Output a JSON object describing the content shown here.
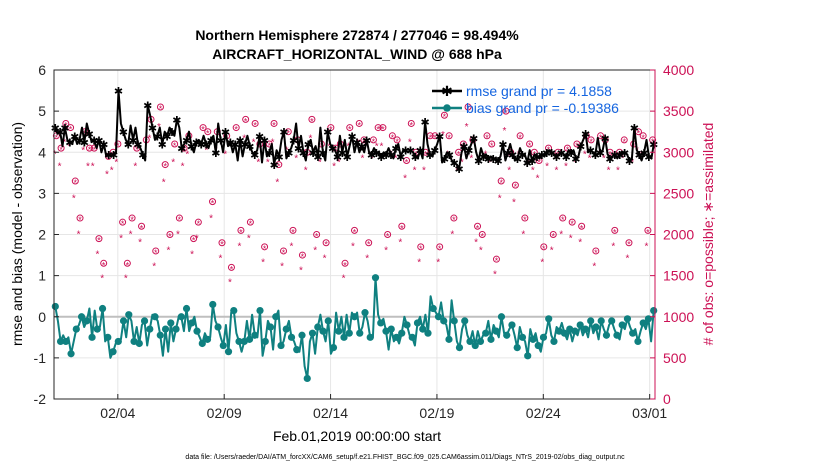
{
  "chart_data": {
    "type": "line",
    "title_line1": "Northern Hemisphere 272874 / 277046 = 98.494%",
    "title_line2": "AIRCRAFT_HORIZONTAL_WIND @ 688 hPa",
    "xlabel": "Feb.01,2019 00:00:00 start",
    "ylabel_left": "rmse and bias (model - observation)",
    "ylabel_right": "# of obs: o=possible; ∗=assimilated",
    "footnote": "data file: /Users/raeder/DAI/ATM_forcXX/CAM6_setup/f.e21.FHIST_BGC.f09_025.CAM6assim.011/Diags_NTrS_2019-02/obs_diag_output.nc",
    "x_range_days": [
      0,
      28.25
    ],
    "ylim_left": [
      -2,
      6
    ],
    "ylim_right": [
      0,
      4000
    ],
    "x_ticks": [
      {
        "day": 3,
        "label": "02/04"
      },
      {
        "day": 8,
        "label": "02/09"
      },
      {
        "day": 13,
        "label": "02/14"
      },
      {
        "day": 18,
        "label": "02/19"
      },
      {
        "day": 23,
        "label": "02/24"
      },
      {
        "day": 28,
        "label": "03/01"
      }
    ],
    "y_ticks_left": [
      "-2",
      "-1",
      "0",
      "1",
      "2",
      "3",
      "4",
      "5",
      "6"
    ],
    "y_ticks_right": [
      "0",
      "500",
      "1000",
      "1500",
      "2000",
      "2500",
      "3000",
      "3500",
      "4000"
    ],
    "legend": [
      {
        "label": "rmse grand pr = 4.1858",
        "color": "#000000"
      },
      {
        "label": "bias grand pr = -0.19386",
        "color": "#0f8080"
      }
    ],
    "series": [
      {
        "name": "rmse",
        "color": "#000000",
        "values": [
          4.6,
          4.45,
          4.5,
          4.15,
          4.6,
          4.3,
          4.25,
          4.2,
          4.4,
          4.2,
          4.3,
          4.6,
          4.25,
          4.7,
          4.45,
          4.25,
          4.3,
          4.1,
          4.3,
          4.0,
          4.2,
          3.9,
          3.95,
          3.9,
          3.95,
          4.0,
          5.5,
          4.7,
          4.5,
          4.3,
          4.2,
          4.65,
          4.3,
          4.6,
          4.2,
          4.1,
          3.95,
          3.8,
          5.15,
          4.9,
          4.6,
          4.3,
          4.4,
          4.6,
          4.2,
          4.5,
          4.4,
          4.6,
          4.5,
          4.4,
          4.8,
          4.6,
          4.1,
          4.2,
          4.3,
          4.5,
          4.15,
          4.0,
          4.25,
          4.3,
          4.2,
          4.4,
          4.2,
          4.1,
          4.3,
          4.4,
          4.0,
          4.7,
          4.3,
          4.0,
          4.5,
          4.15,
          4.25,
          4.0,
          4.2,
          3.8,
          4.3,
          3.9,
          4.2,
          4.4,
          4.15,
          4.0,
          3.95,
          4.05,
          4.4,
          3.75,
          4.3,
          3.9,
          4.0,
          4.2,
          3.7,
          4.05,
          3.9,
          4.3,
          4.5,
          3.85,
          4.0,
          4.1,
          4.3,
          4.7,
          4.1,
          4.4,
          4.0,
          3.8,
          4.2,
          4.3,
          4.0,
          4.15,
          3.9,
          4.6,
          4.0,
          3.8,
          4.5,
          4.2,
          4.1,
          4.05,
          3.9,
          4.4,
          4.0,
          4.3,
          3.9,
          4.15,
          4.4,
          4.0,
          4.25,
          4.0,
          4.15,
          4.0,
          4.3,
          4.0,
          3.95,
          4.1,
          4.0,
          4.0,
          3.9,
          4.0,
          3.95,
          4.1,
          3.95,
          3.85,
          4.1,
          4.2,
          3.9,
          4.05,
          4.05,
          4.0,
          4.05,
          4.0,
          3.9,
          3.85,
          4.05,
          3.85,
          4.75,
          4.2,
          3.95,
          3.9,
          4.05,
          4.2,
          4.4,
          3.75,
          3.85,
          4.0,
          3.95,
          3.8,
          3.75,
          3.7,
          3.6,
          4.0,
          4.15,
          3.85,
          4.05,
          4.2,
          4.35,
          4.0,
          3.8,
          4.1,
          3.9,
          3.95,
          3.85,
          3.9,
          3.85,
          3.85,
          3.8,
          3.9,
          4.2,
          3.8,
          4.0,
          4.2,
          3.95,
          3.8,
          3.85,
          4.1,
          3.95,
          3.95,
          3.75,
          4.05,
          3.8,
          3.95,
          3.9,
          3.85,
          3.95,
          3.9,
          4.0,
          4.05,
          4.0,
          3.95,
          3.9,
          3.95,
          4.0,
          3.95,
          3.9,
          4.05,
          4.0,
          4.05,
          3.85,
          3.9,
          4.15,
          4.3,
          4.45,
          4.0,
          4.05,
          4.0,
          3.95,
          4.35,
          4.0,
          4.05,
          4.35,
          3.95,
          3.85,
          3.9,
          3.95,
          3.85,
          3.95,
          4.0,
          4.0,
          3.95,
          3.8,
          3.85,
          4.6,
          4.05,
          3.95,
          3.8,
          4.0,
          4.3,
          3.9,
          3.85,
          4.2
        ]
      },
      {
        "name": "bias",
        "color": "#0f8080",
        "values": [
          0.25,
          -0.1,
          -0.6,
          -0.45,
          -0.6,
          -0.5,
          -0.9,
          -0.6,
          -0.3,
          -0.2,
          0.0,
          -0.25,
          -0.1,
          0.2,
          -0.5,
          0.15,
          -0.3,
          -0.25,
          0.2,
          -0.6,
          -0.5,
          -1.0,
          -0.85,
          -0.65,
          -0.6,
          -0.55,
          -0.1,
          -0.5,
          0.05,
          -0.1,
          -0.6,
          -0.25,
          -0.65,
          -0.2,
          -0.1,
          -0.7,
          -0.3,
          0.05,
          0.0,
          -0.1,
          -0.45,
          -0.95,
          -0.3,
          -0.85,
          -0.15,
          -0.6,
          -0.3,
          0.0,
          0.0,
          -0.35,
          0.2,
          -0.35,
          -0.15,
          0.0,
          -0.35,
          -0.5,
          -0.65,
          -0.4,
          -0.55,
          -0.5,
          0.3,
          -0.1,
          -0.25,
          -0.5,
          -0.7,
          -0.2,
          -0.85,
          0.1,
          0.15,
          -0.4,
          -0.6,
          -0.85,
          -0.6,
          -0.1,
          -0.55,
          0.05,
          -0.45,
          -0.5,
          0.15,
          -0.95,
          -0.6,
          -0.1,
          -0.25,
          -0.8,
          0.0,
          0.15,
          -0.7,
          -0.6,
          -0.3,
          -0.1,
          -0.5,
          -0.6,
          -0.8,
          -0.85,
          -0.45,
          -1.2,
          -1.5,
          -0.6,
          -0.4,
          -0.9,
          -0.25,
          0.05,
          -0.35,
          -0.6,
          -0.1,
          -0.9,
          -0.75,
          0.1,
          -0.35,
          0.0,
          -0.5,
          0.05,
          -0.4,
          0.1,
          0.0,
          0.1,
          -0.4,
          -0.25,
          0.1,
          -0.1,
          -0.5,
          -0.5,
          0.95,
          0.05,
          -0.15,
          -0.05,
          -0.35,
          -0.8,
          -0.3,
          -0.6,
          -0.5,
          -0.65,
          -0.4,
          0.0,
          -0.2,
          -0.45,
          -0.5,
          -0.7,
          -0.15,
          0.0,
          -0.3,
          0.05,
          -0.4,
          0.5,
          0.2,
          0.1,
          0.0,
          0.35,
          -0.1,
          -0.2,
          -0.55,
          0.4,
          -0.1,
          -0.6,
          -0.75,
          -0.3,
          -0.1,
          -0.45,
          -0.6,
          -0.35,
          -0.7,
          -0.35,
          -0.6,
          -0.45,
          -0.4,
          -0.1,
          -0.55,
          -0.2,
          -0.35,
          -0.5,
          0.0,
          -0.4,
          -0.45,
          -0.3,
          -0.2,
          -0.45,
          -0.75,
          -0.25,
          -0.5,
          -0.6,
          -0.95,
          -0.3,
          -0.55,
          -0.4,
          -0.7,
          -0.85,
          -0.5,
          -0.4,
          -0.05,
          -0.45,
          -0.6,
          -0.25,
          -0.35,
          -0.15,
          -0.4,
          -0.55,
          -0.3,
          -0.6,
          -0.35,
          -0.45,
          -0.2,
          -0.45,
          -0.3,
          -0.5,
          -0.1,
          -0.4,
          -0.25,
          -0.55,
          -0.1,
          -0.3,
          -0.45,
          -0.2,
          -0.1,
          -0.3,
          -0.45,
          -0.55,
          -0.2,
          -0.3,
          -0.05,
          -0.25,
          -0.4,
          -0.3,
          -0.6,
          -0.35,
          -0.15,
          -0.3,
          -0.05,
          -0.6,
          0.15
        ]
      }
    ],
    "obs_counts": {
      "color": "#cc1155",
      "possible": [
        3200,
        3050,
        3350,
        3300,
        2650,
        2200,
        3250,
        3050,
        3050,
        1950,
        1650,
        2950,
        3000,
        3100,
        2150,
        1650,
        2200,
        3050,
        2100,
        3150,
        3400,
        1800,
        3550,
        2850,
        2000,
        3100,
        2200,
        3050,
        3200,
        1950,
        2150,
        3300,
        3250,
        2400,
        3250,
        1900,
        3200,
        1600,
        3300,
        2050,
        3400,
        2150,
        3350,
        3100,
        1850,
        3100,
        3350,
        2850,
        1800,
        3250,
        2050,
        3150,
        1750,
        3000,
        3400,
        2000,
        3100,
        1900,
        3300,
        3050,
        3100,
        1650,
        3300,
        2050,
        3350,
        3150,
        1900,
        3150,
        3300,
        3300,
        2000,
        3200,
        3150,
        2100,
        2900,
        3350,
        3000,
        1850,
        3000,
        3200,
        3200,
        1850,
        3450,
        3200,
        2200,
        3000,
        3100,
        3550,
        3150,
        2100,
        2000,
        3200,
        3100,
        1700,
        2650,
        3500,
        3000,
        2600,
        3200,
        2200,
        3100,
        3000,
        2900,
        1850,
        3050,
        2000,
        3000,
        2200,
        3050,
        2150,
        3100,
        2100,
        3200,
        3150,
        1800,
        3200,
        3150,
        3000,
        2050,
        3000,
        3150,
        1900,
        3100,
        3250,
        3200,
        2050,
        3150
      ]
    }
  }
}
